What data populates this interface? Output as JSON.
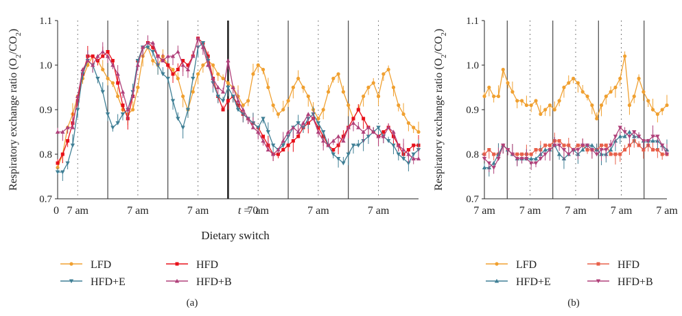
{
  "panels": {
    "a": {
      "label": "(a)",
      "ylabel": "Respiratory exchange ratio (O2/CO2)",
      "xlabel": "Dietary switch"
    },
    "b": {
      "label": "(b)",
      "ylabel": "Respiratory exchange ratio (O2/CO2)"
    }
  },
  "colors": {
    "LFD": "#f0a030",
    "HFD": "#e8604a",
    "HFD+E": "#3f7f95",
    "HFD+B": "#b0407a",
    "HFD_panel_a_red": "#e8101a"
  },
  "chart_data": [
    {
      "type": "line",
      "panel": "a",
      "xlabel": "Dietary switch",
      "ylabel": "Respiratory exchange ratio (O2/CO2)",
      "ylim": [
        0.7,
        1.1
      ],
      "yticks": [
        "0.7",
        "0.8",
        "0.9",
        "1.0",
        "1.1"
      ],
      "xlim": [
        0,
        72
      ],
      "xtick_labels": [
        {
          "x": 0,
          "label": "0"
        },
        {
          "x": 4,
          "label": "7 am"
        },
        {
          "x": 16,
          "label": "7 am"
        },
        {
          "x": 28,
          "label": "7 am"
        },
        {
          "x": 38,
          "label": "t = 0"
        },
        {
          "x": 40,
          "label": "7 am"
        },
        {
          "x": 52,
          "label": "7 am"
        },
        {
          "x": 64,
          "label": "7 am"
        }
      ],
      "solid_lines_x": [
        10,
        22,
        34,
        46,
        58
      ],
      "dotted_lines_x": [
        4,
        16,
        28,
        40,
        52,
        64
      ],
      "switch_x": 34,
      "series": [
        {
          "name": "LFD",
          "marker": "circle",
          "values": [
            0.77,
            0.8,
            0.86,
            0.89,
            0.93,
            0.97,
            1.0,
            1.02,
            1.01,
            0.99,
            0.97,
            0.96,
            0.93,
            0.9,
            0.89,
            0.9,
            0.95,
            1.02,
            1.04,
            1.01,
            1.0,
            1.02,
            1.0,
            0.99,
            0.97,
            0.93,
            0.9,
            0.94,
            0.98,
            1.0,
            1.01,
            1.0,
            0.98,
            0.97,
            0.96,
            0.95,
            0.93,
            0.91,
            0.92,
            0.98,
            1.0,
            0.99,
            0.95,
            0.91,
            0.89,
            0.9,
            0.92,
            0.95,
            0.97,
            0.95,
            0.93,
            0.9,
            0.88,
            0.9,
            0.94,
            0.97,
            0.98,
            0.94,
            0.91,
            0.88,
            0.9,
            0.93,
            0.95,
            0.96,
            0.93,
            0.98,
            0.99,
            0.95,
            0.91,
            0.89,
            0.87,
            0.86,
            0.85
          ]
        },
        {
          "name": "HFD",
          "marker": "square",
          "values": [
            0.78,
            0.8,
            0.83,
            0.87,
            0.92,
            0.98,
            1.02,
            1.02,
            1.01,
            1.02,
            1.03,
            1.01,
            0.96,
            0.91,
            0.88,
            0.93,
            1.01,
            1.04,
            1.05,
            1.04,
            1.02,
            1.01,
            1.0,
            0.98,
            0.99,
            1.01,
            1.0,
            1.02,
            1.06,
            1.05,
            1.02,
            0.97,
            0.93,
            0.9,
            0.92,
            0.93,
            0.91,
            0.89,
            0.88,
            0.87,
            0.86,
            0.84,
            0.82,
            0.8,
            0.8,
            0.81,
            0.82,
            0.83,
            0.84,
            0.86,
            0.87,
            0.88,
            0.86,
            0.84,
            0.82,
            0.81,
            0.82,
            0.84,
            0.86,
            0.88,
            0.9,
            0.88,
            0.86,
            0.85,
            0.84,
            0.85,
            0.86,
            0.84,
            0.82,
            0.8,
            0.81,
            0.82,
            0.82
          ]
        },
        {
          "name": "HFD+E",
          "marker": "triangle-down",
          "values": [
            0.76,
            0.76,
            0.78,
            0.82,
            0.9,
            0.98,
            1.01,
            1.0,
            0.97,
            0.94,
            0.89,
            0.86,
            0.87,
            0.89,
            0.9,
            0.94,
            1.01,
            1.04,
            1.04,
            1.03,
            1.0,
            0.98,
            0.97,
            0.92,
            0.88,
            0.86,
            0.9,
            0.97,
            1.04,
            1.05,
            1.01,
            0.96,
            0.93,
            0.92,
            0.95,
            0.93,
            0.9,
            0.89,
            0.88,
            0.87,
            0.86,
            0.88,
            0.85,
            0.82,
            0.81,
            0.82,
            0.84,
            0.86,
            0.87,
            0.86,
            0.88,
            0.89,
            0.87,
            0.85,
            0.82,
            0.8,
            0.79,
            0.78,
            0.8,
            0.82,
            0.82,
            0.83,
            0.84,
            0.85,
            0.86,
            0.84,
            0.83,
            0.82,
            0.8,
            0.79,
            0.78,
            0.8,
            0.81
          ]
        },
        {
          "name": "HFD+B",
          "marker": "triangle-up",
          "values": [
            0.85,
            0.85,
            0.86,
            0.86,
            0.93,
            0.99,
            1.01,
            1.0,
            1.02,
            1.03,
            1.02,
            1.0,
            0.98,
            0.94,
            0.9,
            0.93,
            1.0,
            1.04,
            1.05,
            1.05,
            1.02,
            1.01,
            1.02,
            1.02,
            1.03,
            1.0,
            0.99,
            1.02,
            1.06,
            1.04,
            1.0,
            0.97,
            0.95,
            0.94,
            1.01,
            0.95,
            0.92,
            0.9,
            0.88,
            0.86,
            0.85,
            0.83,
            0.81,
            0.8,
            0.81,
            0.83,
            0.85,
            0.86,
            0.85,
            0.87,
            0.89,
            0.88,
            0.85,
            0.83,
            0.82,
            0.83,
            0.84,
            0.83,
            0.86,
            0.87,
            0.86,
            0.85,
            0.86,
            0.85,
            0.84,
            0.84,
            0.86,
            0.85,
            0.82,
            0.81,
            0.8,
            0.79,
            0.79
          ]
        }
      ]
    },
    {
      "type": "line",
      "panel": "b",
      "ylabel": "Respiratory exchange ratio (O2/CO2)",
      "ylim": [
        0.7,
        1.1
      ],
      "yticks": [
        "0.7",
        "0.8",
        "0.9",
        "1.0",
        "1.1"
      ],
      "xlim": [
        0,
        48
      ],
      "xtick_labels": [
        {
          "x": 0,
          "label": "7 am"
        },
        {
          "x": 12,
          "label": "7 am"
        },
        {
          "x": 24,
          "label": "7 am"
        },
        {
          "x": 36,
          "label": "7 am"
        },
        {
          "x": 48,
          "label": "7 am"
        }
      ],
      "solid_lines_x": [
        6,
        18,
        30,
        42
      ],
      "dotted_lines_x": [
        12,
        24,
        36
      ],
      "series": [
        {
          "name": "LFD",
          "marker": "circle",
          "values": [
            0.93,
            0.95,
            0.93,
            0.93,
            0.99,
            0.96,
            0.94,
            0.92,
            0.92,
            0.91,
            0.91,
            0.92,
            0.89,
            0.9,
            0.91,
            0.9,
            0.92,
            0.95,
            0.96,
            0.97,
            0.96,
            0.94,
            0.93,
            0.91,
            0.88,
            0.91,
            0.93,
            0.94,
            0.95,
            0.97,
            1.02,
            0.91,
            0.93,
            0.97,
            0.94,
            0.92,
            0.9,
            0.89,
            0.9,
            0.91
          ]
        },
        {
          "name": "HFD",
          "marker": "square",
          "values": [
            0.8,
            0.81,
            0.8,
            0.8,
            0.82,
            0.81,
            0.8,
            0.8,
            0.8,
            0.8,
            0.8,
            0.81,
            0.81,
            0.82,
            0.82,
            0.83,
            0.83,
            0.82,
            0.82,
            0.81,
            0.82,
            0.82,
            0.81,
            0.81,
            0.81,
            0.82,
            0.82,
            0.8,
            0.8,
            0.8,
            0.81,
            0.82,
            0.83,
            0.82,
            0.81,
            0.82,
            0.81,
            0.81,
            0.8,
            0.8
          ]
        },
        {
          "name": "HFD+E",
          "marker": "triangle-up",
          "values": [
            0.77,
            0.77,
            0.78,
            0.8,
            0.82,
            0.81,
            0.8,
            0.79,
            0.79,
            0.79,
            0.79,
            0.79,
            0.8,
            0.81,
            0.81,
            0.82,
            0.8,
            0.79,
            0.8,
            0.81,
            0.8,
            0.81,
            0.82,
            0.82,
            0.81,
            0.8,
            0.8,
            0.81,
            0.83,
            0.84,
            0.84,
            0.85,
            0.84,
            0.84,
            0.83,
            0.83,
            0.83,
            0.83,
            0.82,
            0.81
          ]
        },
        {
          "name": "HFD+B",
          "marker": "triangle-down",
          "values": [
            0.79,
            0.78,
            0.77,
            0.79,
            0.82,
            0.81,
            0.8,
            0.79,
            0.79,
            0.79,
            0.78,
            0.78,
            0.79,
            0.8,
            0.81,
            0.82,
            0.82,
            0.81,
            0.8,
            0.81,
            0.81,
            0.82,
            0.82,
            0.81,
            0.8,
            0.81,
            0.81,
            0.82,
            0.84,
            0.86,
            0.85,
            0.84,
            0.85,
            0.84,
            0.83,
            0.83,
            0.84,
            0.84,
            0.82,
            0.8
          ]
        }
      ]
    }
  ],
  "legend_a": [
    {
      "name": "LFD",
      "marker": "circle"
    },
    {
      "name": "HFD",
      "marker": "square"
    },
    {
      "name": "HFD+E",
      "marker": "triangle-down"
    },
    {
      "name": "HFD+B",
      "marker": "triangle-up"
    }
  ],
  "legend_b": [
    {
      "name": "LFD",
      "marker": "circle"
    },
    {
      "name": "HFD",
      "marker": "square"
    },
    {
      "name": "HFD+E",
      "marker": "triangle-up"
    },
    {
      "name": "HFD+B",
      "marker": "triangle-down"
    }
  ]
}
